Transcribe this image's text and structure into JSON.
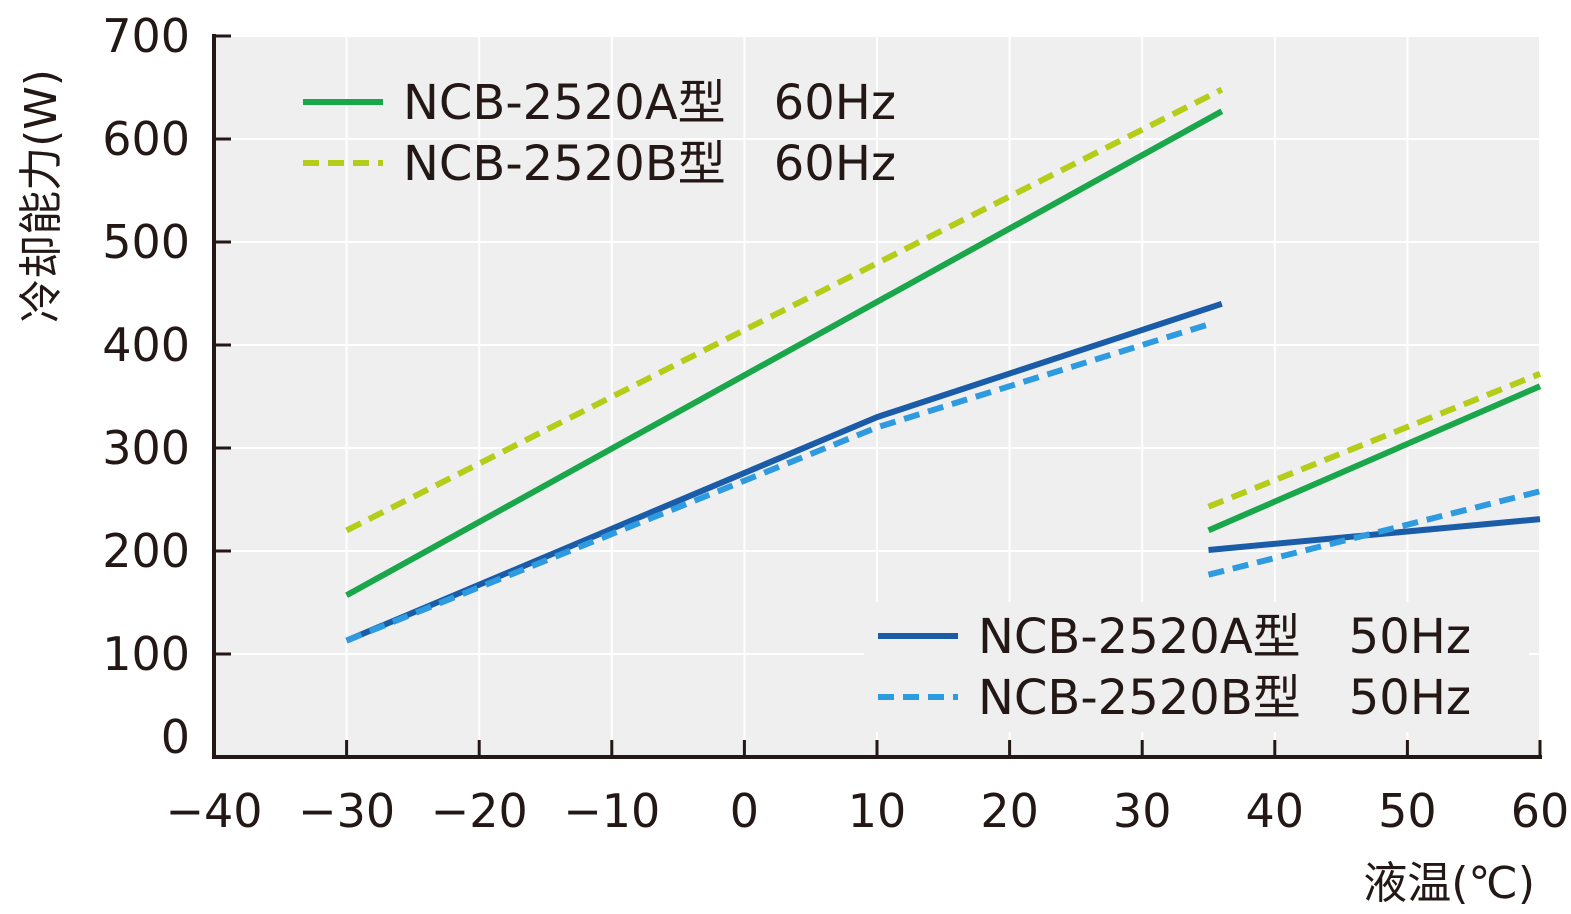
{
  "chart_data": {
    "type": "line",
    "xlabel": "液温(℃)",
    "ylabel": "冷却能力(W)",
    "xlim": [
      -40,
      60
    ],
    "ylim": [
      0,
      700
    ],
    "xticks": [
      -40,
      -30,
      -20,
      -10,
      0,
      10,
      20,
      30,
      40,
      50,
      60
    ],
    "xtick_labels": [
      "−40",
      "−30",
      "−20",
      "−10",
      "0",
      "10",
      "20",
      "30",
      "40",
      "50",
      "60"
    ],
    "yticks": [
      0,
      100,
      200,
      300,
      400,
      500,
      600,
      700
    ],
    "ytick_labels": [
      "0",
      "100",
      "200",
      "300",
      "400",
      "500",
      "600",
      "700"
    ],
    "grid": true,
    "series": [
      {
        "name": "NCB-2520A型　60Hz",
        "color": "#1aa64a",
        "dash": "solid",
        "segments": [
          [
            [
              -30,
              157
            ],
            [
              36,
              627
            ]
          ],
          [
            [
              35,
              220
            ],
            [
              60,
              360
            ]
          ]
        ]
      },
      {
        "name": "NCB-2520B型　60Hz",
        "color": "#b5cc18",
        "dash": "dashed",
        "segments": [
          [
            [
              -30,
              220
            ],
            [
              36,
              648
            ]
          ],
          [
            [
              35,
              243
            ],
            [
              60,
              372
            ]
          ]
        ]
      },
      {
        "name": "NCB-2520A型　50Hz",
        "color": "#1a5ca8",
        "dash": "solid",
        "segments": [
          [
            [
              -30,
              113
            ],
            [
              10,
              330
            ],
            [
              36,
              440
            ]
          ],
          [
            [
              35,
              201
            ],
            [
              60,
              231
            ]
          ]
        ]
      },
      {
        "name": "NCB-2520B型　50Hz",
        "color": "#2e9be0",
        "dash": "dashed",
        "segments": [
          [
            [
              -30,
              113
            ],
            [
              10,
              320
            ],
            [
              35,
              420
            ]
          ],
          [
            [
              35,
              177
            ],
            [
              60,
              258
            ]
          ]
        ]
      }
    ],
    "legends": [
      {
        "placement": "top-left",
        "series": [
          0,
          1
        ]
      },
      {
        "placement": "bottom-right",
        "series": [
          2,
          3
        ]
      }
    ]
  }
}
